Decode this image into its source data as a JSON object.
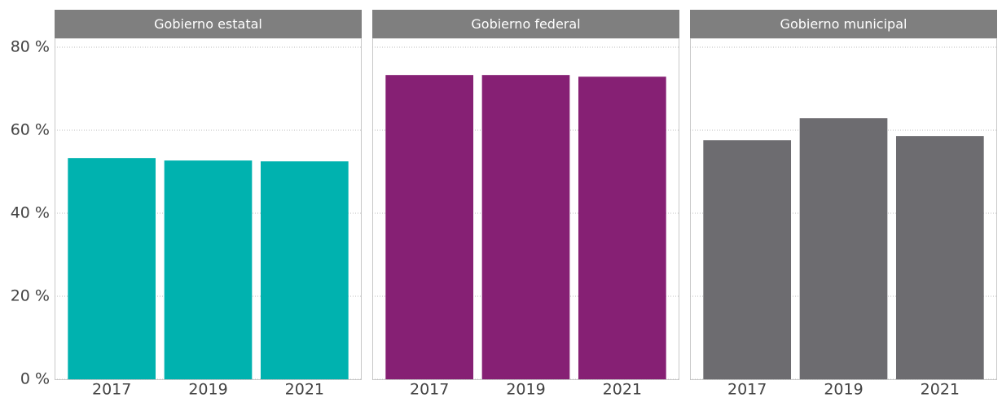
{
  "chart_data": [
    {
      "type": "bar",
      "title": "Gobierno estatal",
      "categories": [
        "2017",
        "2019",
        "2021"
      ],
      "values": [
        53.3,
        52.7,
        52.5
      ],
      "color": "#00b2af",
      "ylim": [
        0,
        80
      ],
      "yticks": [
        {
          "value": 0,
          "label": "0 %"
        },
        {
          "value": 20,
          "label": "20 %"
        },
        {
          "value": 40,
          "label": "40 %"
        },
        {
          "value": 60,
          "label": "60 %"
        },
        {
          "value": 80,
          "label": "80 %"
        }
      ],
      "grid": true
    },
    {
      "type": "bar",
      "title": "Gobierno federal",
      "categories": [
        "2017",
        "2019",
        "2021"
      ],
      "values": [
        73.3,
        73.3,
        72.9
      ],
      "color": "#862074",
      "ylim": [
        0,
        80
      ],
      "grid": true
    },
    {
      "type": "bar",
      "title": "Gobierno municipal",
      "categories": [
        "2017",
        "2019",
        "2021"
      ],
      "values": [
        57.6,
        62.9,
        58.6
      ],
      "color": "#6d6c70",
      "ylim": [
        0,
        80
      ],
      "grid": true
    }
  ]
}
